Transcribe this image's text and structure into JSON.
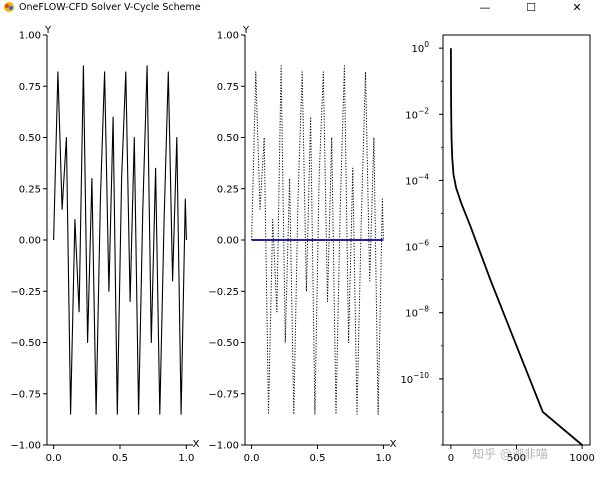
{
  "window": {
    "title": "OneFLOW-CFD Solver V-Cycle Scheme",
    "minimize_glyph": "—",
    "maximize_glyph": "☐",
    "close_glyph": "✕",
    "icon": "app-icon"
  },
  "watermark": "知乎 @迦非喵",
  "chart_data": [
    {
      "type": "line",
      "xlabel": "X",
      "ylabel": "Y",
      "xlim": [
        -0.05,
        1.05
      ],
      "ylim": [
        -1.0,
        1.0
      ],
      "xticks": [
        "0.0",
        "0.5",
        "1.0"
      ],
      "yticks": [
        "1.00",
        "0.75",
        "0.50",
        "0.25",
        "0.00",
        "−0.25",
        "−0.50",
        "−0.75",
        "−1.00"
      ],
      "series": [
        {
          "color": "#000000",
          "style": "solid",
          "x": [
            0.0,
            0.032,
            0.064,
            0.096,
            0.128,
            0.16,
            0.192,
            0.224,
            0.256,
            0.288,
            0.32,
            0.352,
            0.384,
            0.416,
            0.448,
            0.48,
            0.512,
            0.544,
            0.576,
            0.608,
            0.64,
            0.672,
            0.704,
            0.736,
            0.768,
            0.8,
            0.832,
            0.864,
            0.896,
            0.928,
            0.96,
            0.992,
            1.0
          ],
          "y": [
            0.0,
            0.82,
            0.15,
            0.5,
            -0.85,
            0.1,
            -0.35,
            0.85,
            -0.5,
            0.3,
            -0.85,
            0.2,
            0.82,
            -0.25,
            0.6,
            -0.85,
            0.3,
            0.82,
            -0.3,
            0.5,
            -0.85,
            0.15,
            0.85,
            -0.5,
            0.35,
            -0.85,
            0.1,
            0.82,
            -0.2,
            0.5,
            -0.85,
            0.2,
            0.0
          ]
        }
      ]
    },
    {
      "type": "line",
      "xlabel": "X",
      "ylabel": "Y",
      "xlim": [
        -0.05,
        1.05
      ],
      "ylim": [
        -1.0,
        1.0
      ],
      "xticks": [
        "0.0",
        "0.5",
        "1.0"
      ],
      "yticks": [
        "1.00",
        "0.75",
        "0.50",
        "0.25",
        "0.00",
        "−0.25",
        "−0.50",
        "−0.75",
        "−1.00"
      ],
      "series": [
        {
          "color": "#000000",
          "style": "dotted",
          "x": [
            0.0,
            0.032,
            0.064,
            0.096,
            0.128,
            0.16,
            0.192,
            0.224,
            0.256,
            0.288,
            0.32,
            0.352,
            0.384,
            0.416,
            0.448,
            0.48,
            0.512,
            0.544,
            0.576,
            0.608,
            0.64,
            0.672,
            0.704,
            0.736,
            0.768,
            0.8,
            0.832,
            0.864,
            0.896,
            0.928,
            0.96,
            0.992,
            1.0
          ],
          "y": [
            0.0,
            0.82,
            0.15,
            0.5,
            -0.85,
            0.1,
            -0.35,
            0.85,
            -0.5,
            0.3,
            -0.85,
            0.2,
            0.82,
            -0.25,
            0.6,
            -0.85,
            0.3,
            0.82,
            -0.3,
            0.5,
            -0.85,
            0.15,
            0.85,
            -0.5,
            0.35,
            -0.85,
            0.1,
            0.82,
            -0.2,
            0.5,
            -0.85,
            0.2,
            0.0
          ]
        },
        {
          "color": "#1f1fa8",
          "style": "solid",
          "x": [
            0.0,
            1.0
          ],
          "y": [
            0.0,
            0.0
          ]
        }
      ]
    },
    {
      "type": "line",
      "yscale": "log",
      "xlim": [
        -60,
        1060
      ],
      "ylim": [
        1e-12,
        2.5
      ],
      "xticks": [
        "0",
        "500",
        "1000"
      ],
      "yticks": [
        "10^0",
        "10^−2",
        "10^−4",
        "10^−6",
        "10^−8",
        "10^−10"
      ],
      "series": [
        {
          "color": "#000000",
          "style": "solid",
          "x": [
            0,
            2,
            5,
            10,
            20,
            40,
            80,
            150,
            300,
            500,
            700,
            1000
          ],
          "y": [
            1.0,
            0.02,
            0.002,
            0.0005,
            0.00015,
            6e-05,
            2e-05,
            4e-06,
            1e-07,
            1e-09,
            1e-11,
            1e-12
          ]
        }
      ]
    }
  ]
}
